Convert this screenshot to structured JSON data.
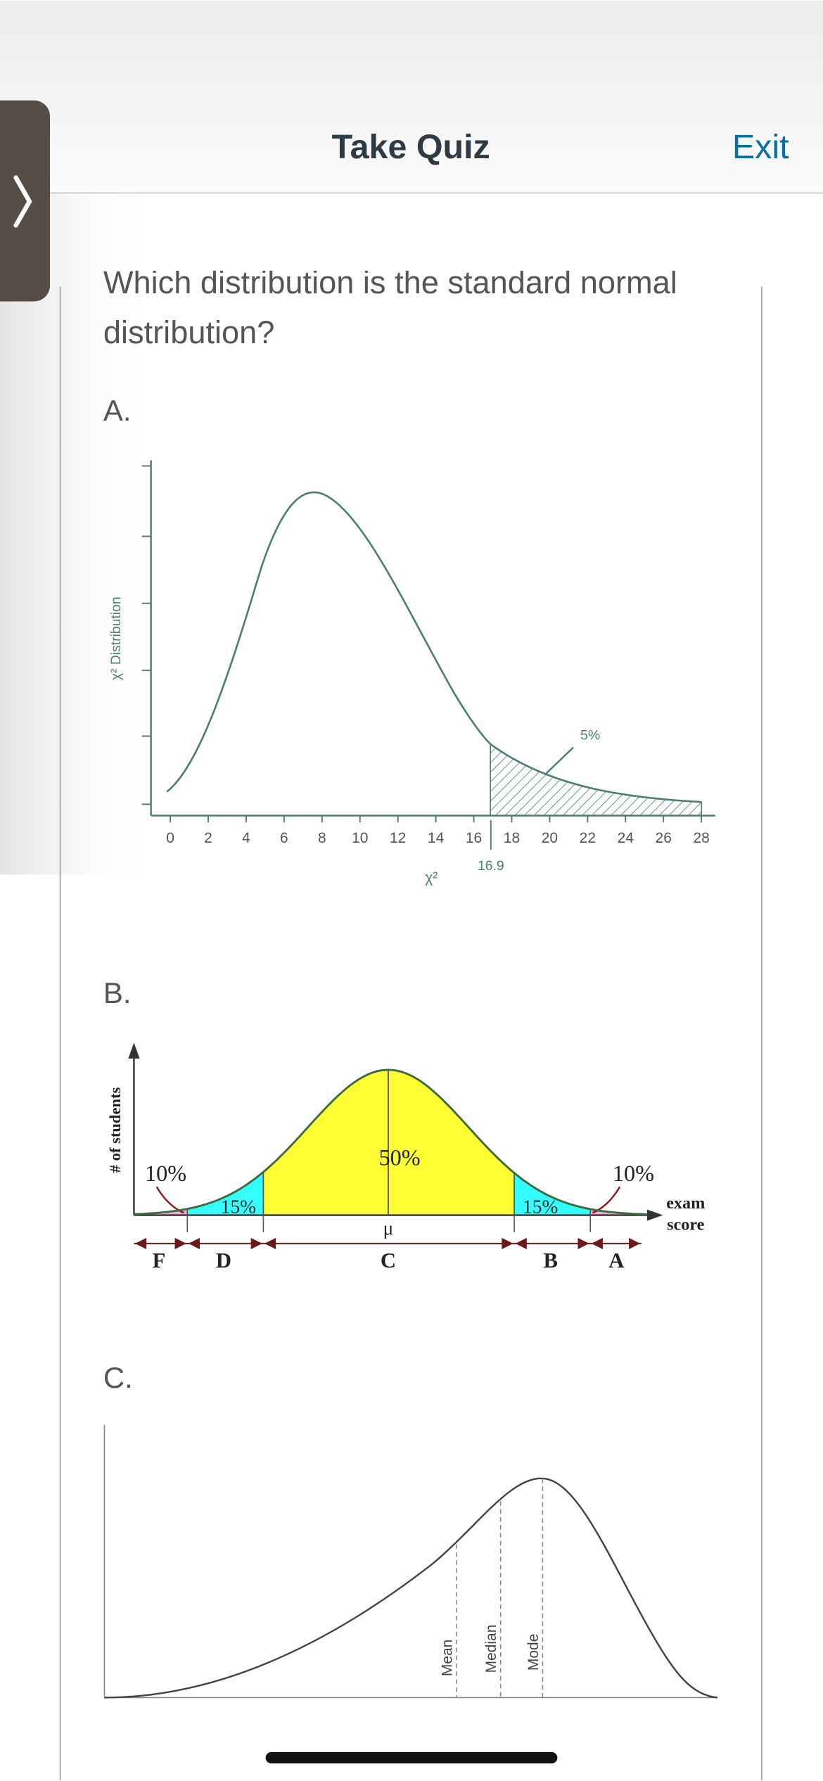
{
  "header": {
    "title": "Take Quiz",
    "exit": "Exit"
  },
  "question": {
    "lines": [
      "Which distribution is the standard normal",
      "distribution?"
    ]
  },
  "options": [
    {
      "label": "A.",
      "figure": {
        "y_label": "χ² Distribution",
        "x_label": "χ²",
        "xticks": [
          0,
          2,
          4,
          6,
          8,
          10,
          12,
          14,
          16,
          18,
          20,
          22,
          24,
          26,
          28
        ],
        "marker": 16.9,
        "area_label": "5%"
      }
    },
    {
      "label": "B.",
      "figure": {
        "y_label": "# of students",
        "x_label_lines": [
          "exam",
          "score"
        ],
        "center_label": "μ",
        "region_labels": [
          "10%",
          "15%",
          "50%",
          "15%",
          "10%"
        ],
        "grades": [
          "F",
          "D",
          "C",
          "B",
          "A"
        ]
      }
    },
    {
      "label": "C.",
      "figure": {
        "lines": [
          "Mean",
          "Median",
          "Mode"
        ]
      }
    }
  ]
}
